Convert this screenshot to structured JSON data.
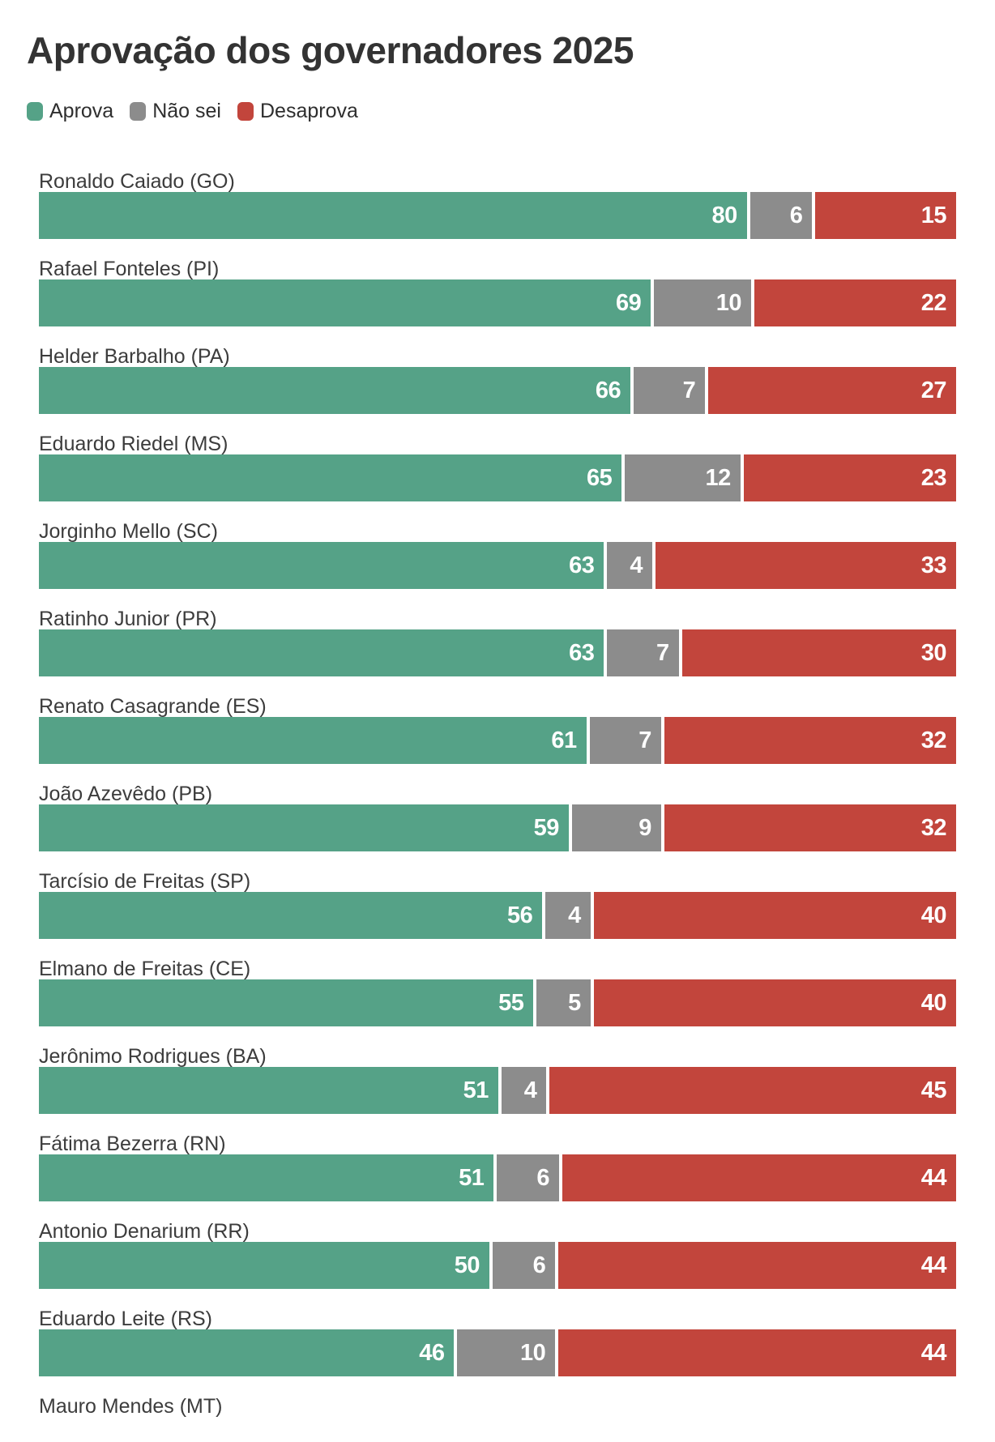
{
  "title": "Aprovação dos governadores 2025",
  "colors": {
    "aprova": "#55a287",
    "nao_sei": "#8c8c8c",
    "desaprova": "#c2453c",
    "title_text": "#333333",
    "row_label_text": "#3c3c3c",
    "value_text": "#ffffff",
    "background": "#ffffff"
  },
  "legend": {
    "items": [
      {
        "key": "aprova",
        "label": "Aprova"
      },
      {
        "key": "nao_sei",
        "label": "Não sei"
      },
      {
        "key": "desaprova",
        "label": "Desaprova"
      }
    ]
  },
  "chart_data": {
    "type": "bar",
    "orientation": "horizontal",
    "stacked": true,
    "normalized_to_row_total": true,
    "title": "Aprovação dos governadores 2025",
    "series_names": [
      "Aprova",
      "Não sei",
      "Desaprova"
    ],
    "unit": "percent",
    "legend_position": "top",
    "grid": false,
    "rows": [
      {
        "name": "Ronaldo Caiado (GO)",
        "values": [
          80,
          6,
          15
        ]
      },
      {
        "name": "Rafael Fonteles (PI)",
        "values": [
          69,
          10,
          22
        ]
      },
      {
        "name": "Helder Barbalho (PA)",
        "values": [
          66,
          7,
          27
        ]
      },
      {
        "name": "Eduardo Riedel (MS)",
        "values": [
          65,
          12,
          23
        ]
      },
      {
        "name": "Jorginho Mello (SC)",
        "values": [
          63,
          4,
          33
        ]
      },
      {
        "name": "Ratinho Junior (PR)",
        "values": [
          63,
          7,
          30
        ]
      },
      {
        "name": "Renato Casagrande (ES)",
        "values": [
          61,
          7,
          32
        ]
      },
      {
        "name": "João Azevêdo (PB)",
        "values": [
          59,
          9,
          32
        ]
      },
      {
        "name": "Tarcísio de Freitas (SP)",
        "values": [
          56,
          4,
          40
        ]
      },
      {
        "name": "Elmano de Freitas (CE)",
        "values": [
          55,
          5,
          40
        ]
      },
      {
        "name": "Jerônimo Rodrigues (BA)",
        "values": [
          51,
          4,
          45
        ]
      },
      {
        "name": "Fátima Bezerra (RN)",
        "values": [
          51,
          6,
          44
        ]
      },
      {
        "name": "Antonio Denarium (RR)",
        "values": [
          50,
          6,
          44
        ]
      },
      {
        "name": "Eduardo Leite (RS)",
        "values": [
          46,
          10,
          44
        ]
      },
      {
        "name": "Mauro Mendes (MT)",
        "values": null
      }
    ]
  }
}
